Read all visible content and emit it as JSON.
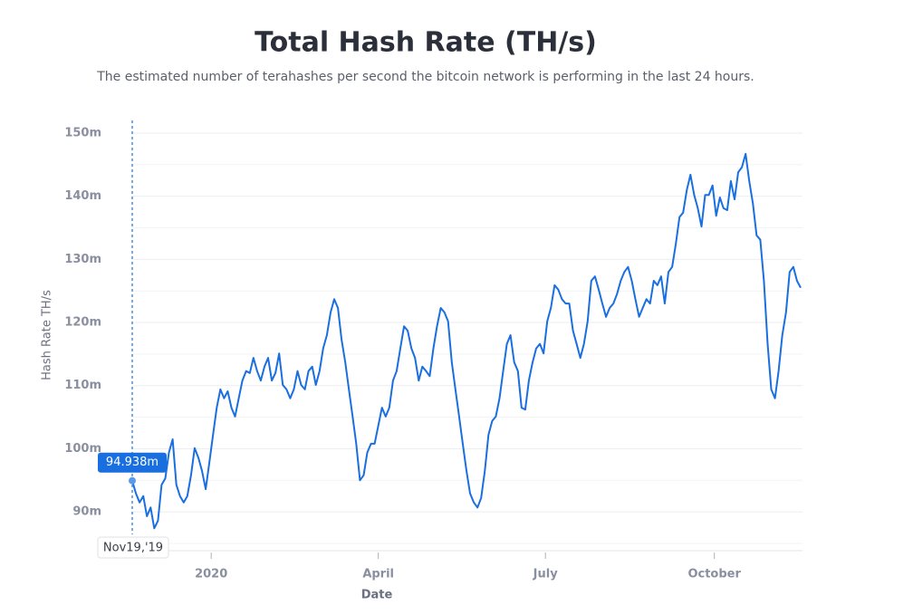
{
  "chart_data": {
    "type": "line",
    "title": "Total Hash Rate (TH/s)",
    "subtitle": "The estimated number of terahashes per second the bitcoin network is performing in the last 24 hours.",
    "x_label": "Date",
    "y_label": "Hash Rate TH/s",
    "xlim": [
      0,
      365
    ],
    "ylim": [
      85,
      152
    ],
    "xticks": [
      {
        "value": 43,
        "label": "2020"
      },
      {
        "value": 134,
        "label": "April"
      },
      {
        "value": 225,
        "label": "July"
      },
      {
        "value": 317,
        "label": "October"
      }
    ],
    "yticks": [
      {
        "value": 90,
        "label": "90m"
      },
      {
        "value": 100,
        "label": "100m"
      },
      {
        "value": 110,
        "label": "110m"
      },
      {
        "value": 120,
        "label": "120m"
      },
      {
        "value": 130,
        "label": "130m"
      },
      {
        "value": 140,
        "label": "140m"
      },
      {
        "value": 150,
        "label": "150m"
      }
    ],
    "minor_yticks": [
      85,
      95,
      105,
      115,
      125,
      135,
      145
    ],
    "grid": true,
    "tooltip": {
      "x": 0,
      "x_label": "Nov19,'19",
      "value": 94.938,
      "label": "94.938m"
    },
    "x": [
      0,
      2,
      4,
      6,
      8,
      10,
      12,
      14,
      16,
      18,
      20,
      22,
      24,
      26,
      28,
      30,
      32,
      34,
      36,
      38,
      40,
      42,
      44,
      46,
      48,
      50,
      52,
      54,
      56,
      58,
      60,
      62,
      64,
      66,
      68,
      70,
      72,
      74,
      76,
      78,
      80,
      82,
      84,
      86,
      88,
      90,
      92,
      94,
      96,
      98,
      100,
      102,
      104,
      106,
      108,
      110,
      112,
      114,
      116,
      118,
      120,
      122,
      124,
      126,
      128,
      130,
      132,
      134,
      136,
      138,
      140,
      142,
      144,
      146,
      148,
      150,
      152,
      154,
      156,
      158,
      160,
      162,
      164,
      166,
      168,
      170,
      172,
      174,
      176,
      178,
      180,
      182,
      184,
      186,
      188,
      190,
      192,
      194,
      196,
      198,
      200,
      202,
      204,
      206,
      208,
      210,
      212,
      214,
      216,
      218,
      220,
      222,
      224,
      226,
      228,
      230,
      232,
      234,
      236,
      238,
      240,
      242,
      244,
      246,
      248,
      250,
      252,
      254,
      256,
      258,
      260,
      262,
      264,
      266,
      268,
      270,
      272,
      274,
      276,
      278,
      280,
      282,
      284,
      286,
      288,
      290,
      292,
      294,
      296,
      298,
      300,
      302,
      304,
      306,
      308,
      310,
      312,
      314,
      316,
      318,
      320,
      322,
      324,
      326,
      328,
      330,
      332,
      334,
      336,
      338,
      340,
      342,
      344,
      346,
      348,
      350,
      352,
      354,
      356,
      358,
      360,
      362,
      364
    ],
    "series": [
      {
        "name": "Hash Rate",
        "color": "#1a6fe0",
        "values": [
          94.938,
          92.9,
          91.5,
          92.5,
          89.3,
          90.7,
          87.4,
          88.6,
          94.3,
          95.3,
          99.4,
          101.5,
          94.3,
          92.5,
          91.5,
          92.5,
          95.8,
          100.1,
          98.6,
          96.5,
          93.6,
          97.9,
          102.2,
          106.5,
          109.4,
          108.0,
          109.1,
          106.5,
          105.1,
          108.0,
          110.8,
          112.3,
          112.0,
          114.4,
          112.3,
          110.8,
          113.0,
          114.4,
          110.8,
          112.0,
          115.1,
          110.1,
          109.4,
          108.0,
          109.4,
          112.3,
          110.1,
          109.4,
          112.3,
          113.0,
          110.1,
          112.3,
          115.9,
          118.0,
          121.6,
          123.7,
          122.3,
          117.3,
          113.7,
          109.4,
          105.1,
          100.8,
          95.0,
          95.8,
          99.4,
          100.8,
          100.8,
          103.7,
          106.5,
          105.1,
          106.5,
          110.8,
          112.3,
          115.9,
          119.4,
          118.7,
          115.9,
          114.4,
          110.8,
          113.0,
          112.3,
          111.5,
          115.9,
          119.4,
          122.3,
          121.6,
          120.2,
          113.7,
          109.4,
          105.1,
          100.8,
          96.5,
          92.9,
          91.5,
          90.7,
          92.2,
          96.5,
          102.2,
          104.4,
          105.1,
          108.0,
          112.3,
          116.6,
          118.0,
          113.7,
          112.3,
          106.5,
          106.2,
          110.8,
          113.7,
          115.9,
          116.6,
          115.1,
          120.2,
          122.3,
          125.9,
          125.2,
          123.7,
          123.0,
          123.0,
          118.7,
          116.6,
          114.4,
          116.6,
          120.2,
          126.6,
          127.3,
          125.2,
          123.0,
          120.9,
          122.3,
          123.0,
          124.5,
          126.6,
          128.0,
          128.8,
          126.6,
          123.7,
          120.9,
          122.3,
          123.7,
          123.0,
          126.6,
          125.9,
          127.3,
          123.0,
          128.0,
          128.8,
          132.4,
          136.7,
          137.4,
          141.0,
          143.4,
          140.2,
          138.1,
          135.2,
          140.2,
          140.2,
          141.7,
          136.9,
          139.8,
          138.1,
          137.8,
          142.4,
          139.5,
          143.8,
          144.6,
          146.7,
          142.4,
          138.8,
          133.8,
          133.1,
          126.6,
          116.6,
          109.4,
          108.0,
          112.3,
          118.0,
          121.6,
          128.0,
          128.8,
          126.6,
          125.5
        ]
      }
    ]
  }
}
